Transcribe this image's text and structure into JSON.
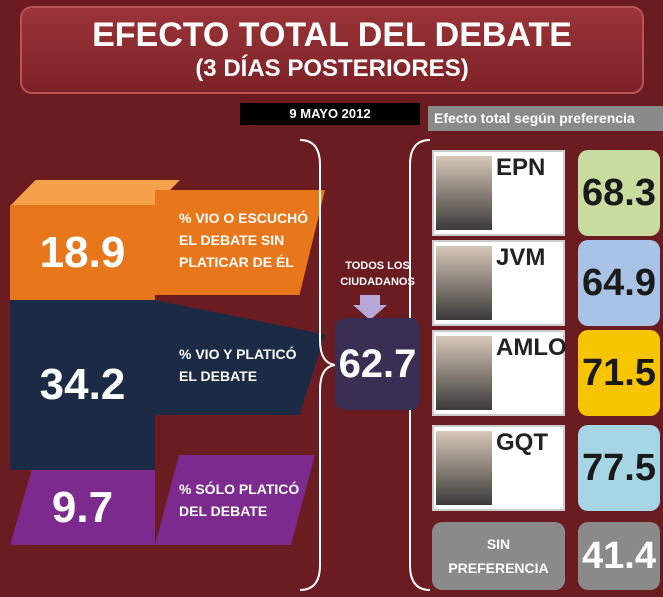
{
  "header": {
    "title": "EFECTO TOTAL DEL DEBATE",
    "subtitle": "(3 DÍAS POSTERIORES)",
    "date": "9 MAYO 2012"
  },
  "segments": [
    {
      "value": "18.9",
      "label": [
        "% VIO O ESCUCHÓ",
        "EL DEBATE SIN",
        "PLATICAR DE ÉL"
      ]
    },
    {
      "value": "34.2",
      "label": [
        "% VIO Y PLATICÓ",
        "EL DEBATE"
      ]
    },
    {
      "value": "9.7",
      "label": [
        "% SÓLO PLATICÓ",
        "DEL DEBATE"
      ]
    }
  ],
  "total": {
    "label": [
      "TODOS LOS",
      "CIUDADANOS"
    ],
    "value": "62.7"
  },
  "preference": {
    "title": "Efecto total según preferencia",
    "candidates": [
      {
        "name": "EPN",
        "value": "68.3"
      },
      {
        "name": "JVM",
        "value": "64.9"
      },
      {
        "name": "AMLO",
        "value": "71.5"
      },
      {
        "name": "GQT",
        "value": "77.5"
      }
    ],
    "none": {
      "label": [
        "SIN",
        "PREFERENCIA"
      ],
      "value": "41.4"
    }
  }
}
